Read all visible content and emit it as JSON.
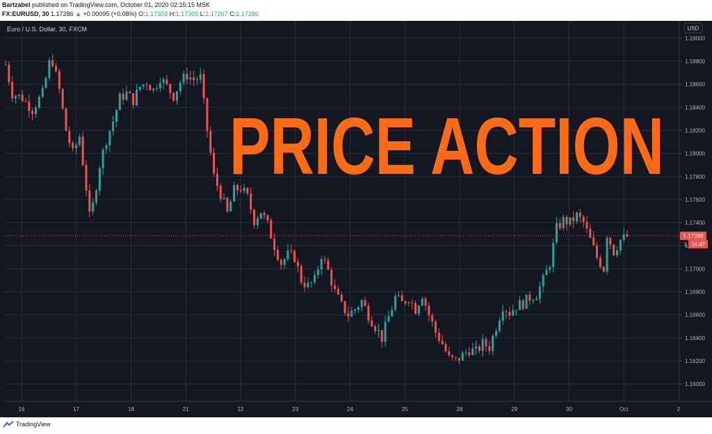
{
  "header": {
    "author": "Bartzabel",
    "published": "published on TradingView.com, October 01, 2020 02:15:15 MSK",
    "symbol": "FX:EURUSD, 30",
    "last": "1.17286",
    "change_arrow": "▲",
    "change": "+0.00095 (+0.08%)",
    "o_label": "O:",
    "o_value": "1.17303",
    "h_label": "H:",
    "h_value": "1.17305",
    "l_label": "L:",
    "l_value": "1.17267",
    "c_label": "C:",
    "c_value": "1.17286"
  },
  "pane": {
    "legend": "Euro / U.S. Dollar, 30, FXCM",
    "currency_badge": "USD",
    "overlay_text": "PRICE ACTION",
    "last_price_label": "1.17286",
    "countdown_label": "14:47",
    "countdown_prefix": "1."
  },
  "footer": {
    "brand": "TradingView"
  },
  "colors": {
    "background": "#131722",
    "grid": "#2a2e39",
    "up": "#26a69a",
    "down": "#ef5350",
    "overlay": "#ff6a13",
    "axis_text": "#b2b5be"
  },
  "chart_data": {
    "type": "candlestick",
    "series_name": "EUR/USD",
    "x_tick_labels": [
      "16",
      "17",
      "18",
      "21",
      "22",
      "23",
      "24",
      "25",
      "28",
      "29",
      "30",
      "Oct",
      "2"
    ],
    "y_tick_labels": [
      "1.19000",
      "1.18800",
      "1.18600",
      "1.18400",
      "1.18200",
      "1.18000",
      "1.17800",
      "1.17600",
      "1.17400",
      "1.17200",
      "1.17000",
      "1.16800",
      "1.16600",
      "1.16400",
      "1.16200",
      "1.16000"
    ],
    "ylim": [
      1.1585,
      1.1915
    ],
    "last_price": 1.17286,
    "grid": true,
    "price_path": [
      [
        0,
        1.1877
      ],
      [
        2,
        1.1852
      ],
      [
        5,
        1.1848
      ],
      [
        8,
        1.1838
      ],
      [
        11,
        1.1852
      ],
      [
        13,
        1.1878
      ],
      [
        14,
        1.188
      ],
      [
        16,
        1.1855
      ],
      [
        18,
        1.182
      ],
      [
        20,
        1.18
      ],
      [
        22,
        1.1815
      ],
      [
        24,
        1.177
      ],
      [
        25,
        1.1745
      ],
      [
        26,
        1.1755
      ],
      [
        28,
        1.179
      ],
      [
        30,
        1.1812
      ],
      [
        32,
        1.1828
      ],
      [
        34,
        1.1848
      ],
      [
        36,
        1.1852
      ],
      [
        38,
        1.1846
      ],
      [
        40,
        1.1858
      ],
      [
        42,
        1.1862
      ],
      [
        44,
        1.1855
      ],
      [
        46,
        1.1866
      ],
      [
        48,
        1.1858
      ],
      [
        50,
        1.185
      ],
      [
        52,
        1.1862
      ],
      [
        54,
        1.1868
      ],
      [
        56,
        1.1864
      ],
      [
        58,
        1.1866
      ],
      [
        60,
        1.182
      ],
      [
        62,
        1.178
      ],
      [
        64,
        1.1765
      ],
      [
        66,
        1.1748
      ],
      [
        68,
        1.1768
      ],
      [
        70,
        1.177
      ],
      [
        72,
        1.1762
      ],
      [
        74,
        1.1742
      ],
      [
        76,
        1.175
      ],
      [
        78,
        1.1738
      ],
      [
        80,
        1.172
      ],
      [
        82,
        1.1705
      ],
      [
        84,
        1.1712
      ],
      [
        86,
        1.171
      ],
      [
        88,
        1.169
      ],
      [
        90,
        1.1685
      ],
      [
        92,
        1.169
      ],
      [
        94,
        1.1712
      ],
      [
        96,
        1.1698
      ],
      [
        98,
        1.168
      ],
      [
        100,
        1.1668
      ],
      [
        102,
        1.166
      ],
      [
        104,
        1.1665
      ],
      [
        106,
        1.1672
      ],
      [
        108,
        1.166
      ],
      [
        110,
        1.165
      ],
      [
        112,
        1.164
      ],
      [
        114,
        1.1658
      ],
      [
        116,
        1.1675
      ],
      [
        118,
        1.167
      ],
      [
        120,
        1.1675
      ],
      [
        122,
        1.1665
      ],
      [
        124,
        1.1678
      ],
      [
        126,
        1.166
      ],
      [
        128,
        1.1645
      ],
      [
        130,
        1.1635
      ],
      [
        132,
        1.1622
      ],
      [
        134,
        1.162
      ],
      [
        136,
        1.1625
      ],
      [
        138,
        1.163
      ],
      [
        140,
        1.1628
      ],
      [
        142,
        1.1635
      ],
      [
        144,
        1.1632
      ],
      [
        146,
        1.165
      ],
      [
        148,
        1.1668
      ],
      [
        150,
        1.1662
      ],
      [
        152,
        1.1668
      ],
      [
        154,
        1.167
      ],
      [
        156,
        1.1675
      ],
      [
        158,
        1.1678
      ],
      [
        160,
        1.169
      ],
      [
        162,
        1.1705
      ],
      [
        164,
        1.1735
      ],
      [
        166,
        1.1742
      ],
      [
        168,
        1.174
      ],
      [
        170,
        1.1746
      ],
      [
        172,
        1.174
      ],
      [
        174,
        1.1725
      ],
      [
        176,
        1.171
      ],
      [
        178,
        1.17
      ],
      [
        179,
        1.173
      ],
      [
        181,
        1.1715
      ],
      [
        183,
        1.1725
      ],
      [
        185,
        1.1728
      ]
    ]
  }
}
